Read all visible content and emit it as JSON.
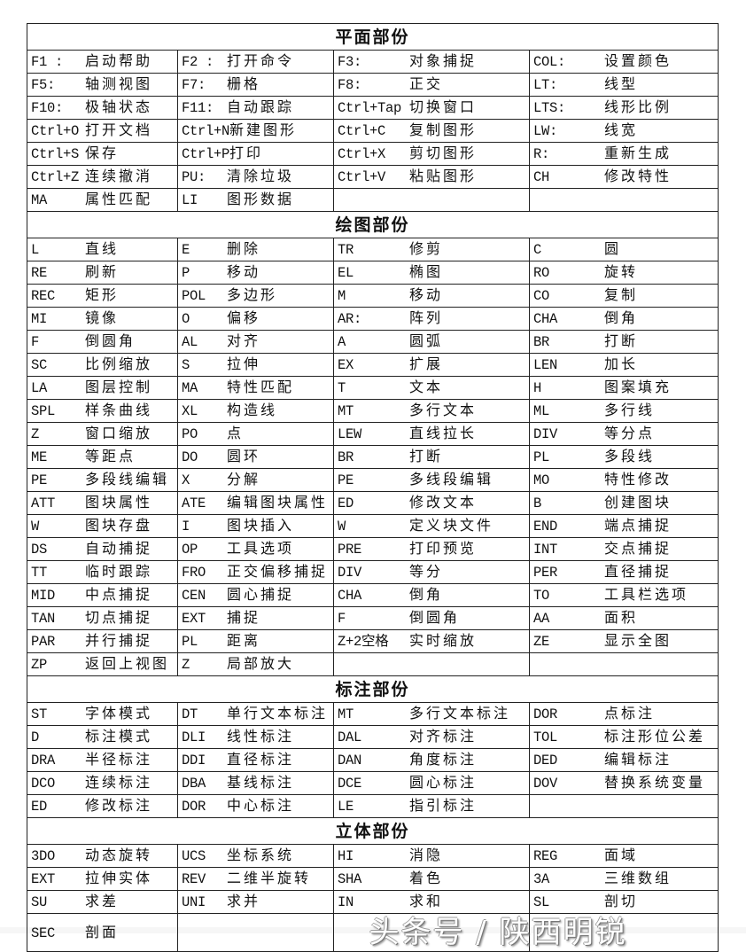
{
  "sections": [
    {
      "title": "平面部份",
      "rows": [
        [
          [
            "F1 :",
            "启动帮助"
          ],
          [
            "F2 :",
            "打开命令"
          ],
          [
            "F3:",
            "对象捕捉"
          ],
          [
            "COL:",
            "设置颜色"
          ]
        ],
        [
          [
            "F5:",
            "轴测视图"
          ],
          [
            "F7:",
            "栅格"
          ],
          [
            "F8:",
            "正交"
          ],
          [
            "LT:",
            "线型"
          ]
        ],
        [
          [
            "F10:",
            "极轴状态"
          ],
          [
            "F11:",
            "自动跟踪"
          ],
          [
            "Ctrl+Tap",
            "切换窗口"
          ],
          [
            "LTS:",
            "线形比例"
          ]
        ],
        [
          [
            "Ctrl+O",
            "打开文档"
          ],
          [
            "Ctrl+N",
            "新建图形"
          ],
          [
            "Ctrl+C",
            "复制图形"
          ],
          [
            "LW:",
            "线宽"
          ]
        ],
        [
          [
            "Ctrl+S",
            "保存"
          ],
          [
            "Ctrl+P",
            "打印"
          ],
          [
            "Ctrl+X",
            "剪切图形"
          ],
          [
            "R:",
            "重新生成"
          ]
        ],
        [
          [
            "Ctrl+Z",
            "连续撤消"
          ],
          [
            "PU:",
            "清除垃圾"
          ],
          [
            "Ctrl+V",
            "粘贴图形"
          ],
          [
            "CH",
            "修改特性"
          ]
        ],
        [
          [
            "MA",
            "属性匹配"
          ],
          [
            "LI",
            "图形数据"
          ],
          [
            "",
            ""
          ],
          [
            "",
            ""
          ]
        ]
      ]
    },
    {
      "title": "绘图部份",
      "rows": [
        [
          [
            "L",
            "直线"
          ],
          [
            "E",
            "删除"
          ],
          [
            "TR",
            "修剪"
          ],
          [
            "C",
            "圆"
          ]
        ],
        [
          [
            "RE",
            "刷新"
          ],
          [
            "P",
            "移动"
          ],
          [
            "EL",
            "椭图"
          ],
          [
            "RO",
            "旋转"
          ]
        ],
        [
          [
            "REC",
            "矩形"
          ],
          [
            "POL",
            "多边形"
          ],
          [
            "M",
            "移动"
          ],
          [
            "CO",
            "复制"
          ]
        ],
        [
          [
            "MI",
            "镜像"
          ],
          [
            "O",
            "偏移"
          ],
          [
            "AR:",
            "阵列"
          ],
          [
            "CHA",
            "倒角"
          ]
        ],
        [
          [
            "F",
            "倒圆角"
          ],
          [
            "AL",
            "对齐"
          ],
          [
            "A",
            "圆弧"
          ],
          [
            "BR",
            "打断"
          ]
        ],
        [
          [
            "SC",
            "比例缩放"
          ],
          [
            "S",
            "拉伸"
          ],
          [
            "EX",
            "扩展"
          ],
          [
            "LEN",
            "加长"
          ]
        ],
        [
          [
            "LA",
            "图层控制"
          ],
          [
            "MA",
            "特性匹配"
          ],
          [
            "T",
            "文本"
          ],
          [
            "H",
            "图案填充"
          ]
        ],
        [
          [
            "SPL",
            "样条曲线"
          ],
          [
            "XL",
            "构造线"
          ],
          [
            "MT",
            "多行文本"
          ],
          [
            "ML",
            "多行线"
          ]
        ],
        [
          [
            "Z",
            "窗口缩放"
          ],
          [
            "PO",
            "点"
          ],
          [
            "LEW",
            "直线拉长"
          ],
          [
            "DIV",
            "等分点"
          ]
        ],
        [
          [
            "ME",
            "等距点"
          ],
          [
            "DO",
            "圆环"
          ],
          [
            "BR",
            "打断"
          ],
          [
            "PL",
            "多段线"
          ]
        ],
        [
          [
            "PE",
            "多段线编辑"
          ],
          [
            "X",
            "分解"
          ],
          [
            "PE",
            "多线段编辑"
          ],
          [
            "MO",
            "特性修改"
          ]
        ],
        [
          [
            "ATT",
            "图块属性"
          ],
          [
            "ATE",
            "编辑图块属性"
          ],
          [
            "ED",
            "修改文本"
          ],
          [
            "B",
            "创建图块"
          ]
        ],
        [
          [
            "W",
            "图块存盘"
          ],
          [
            "I",
            "图块插入"
          ],
          [
            "W",
            "定义块文件"
          ],
          [
            "END",
            "端点捕捉"
          ]
        ],
        [
          [
            "DS",
            "自动捕捉"
          ],
          [
            "OP",
            "工具选项"
          ],
          [
            "PRE",
            "打印预览"
          ],
          [
            "INT",
            "交点捕捉"
          ]
        ],
        [
          [
            "TT",
            "临时跟踪"
          ],
          [
            "FRO",
            "正交偏移捕捉"
          ],
          [
            "DIV",
            "等分"
          ],
          [
            "PER",
            "直径捕捉"
          ]
        ],
        [
          [
            "MID",
            "中点捕捉"
          ],
          [
            "CEN",
            "圆心捕捉"
          ],
          [
            "CHA",
            "倒角"
          ],
          [
            "TO",
            "工具栏选项"
          ]
        ],
        [
          [
            "TAN",
            "切点捕捉"
          ],
          [
            "EXT",
            "捕捉"
          ],
          [
            "F",
            "倒圆角"
          ],
          [
            "AA",
            "面积"
          ]
        ],
        [
          [
            "PAR",
            "并行捕捉"
          ],
          [
            "PL",
            "距离"
          ],
          [
            "Z+2空格",
            "实时缩放"
          ],
          [
            "ZE",
            "显示全图"
          ]
        ],
        [
          [
            "ZP",
            "返回上视图"
          ],
          [
            "Z",
            "局部放大"
          ],
          [
            "",
            ""
          ],
          [
            "",
            ""
          ]
        ]
      ]
    },
    {
      "title": "标注部份",
      "rows": [
        [
          [
            "ST",
            "字体模式"
          ],
          [
            "DT",
            "单行文本标注"
          ],
          [
            "MT",
            "多行文本标注"
          ],
          [
            "DOR",
            "点标注"
          ]
        ],
        [
          [
            "D",
            "标注模式"
          ],
          [
            "DLI",
            "线性标注"
          ],
          [
            "DAL",
            "对齐标注"
          ],
          [
            "TOL",
            "标注形位公差"
          ]
        ],
        [
          [
            "DRA",
            "半径标注"
          ],
          [
            "DDI",
            "直径标注"
          ],
          [
            "DAN",
            "角度标注"
          ],
          [
            "DED",
            "编辑标注"
          ]
        ],
        [
          [
            "DCO",
            "连续标注"
          ],
          [
            "DBA",
            "基线标注"
          ],
          [
            "DCE",
            "圆心标注"
          ],
          [
            "DOV",
            "替换系统变量"
          ]
        ],
        [
          [
            "ED",
            "修改标注"
          ],
          [
            "DOR",
            "中心标注"
          ],
          [
            "LE",
            "指引标注"
          ],
          [
            "",
            ""
          ]
        ]
      ]
    },
    {
      "title": "立体部份",
      "rows": [
        [
          [
            "3DO",
            "动态旋转"
          ],
          [
            "UCS",
            "坐标系统"
          ],
          [
            "HI",
            "消隐"
          ],
          [
            "REG",
            "面域"
          ]
        ],
        [
          [
            "EXT",
            "拉伸实体"
          ],
          [
            "REV",
            "二维半旋转"
          ],
          [
            "SHA",
            "着色"
          ],
          [
            "3A",
            "三维数组"
          ]
        ],
        [
          [
            "SU",
            "求差"
          ],
          [
            "UNI",
            "求并"
          ],
          [
            "IN",
            "求和"
          ],
          [
            "SL",
            "剖切"
          ]
        ],
        [
          [
            "SEC",
            "剖面"
          ],
          [
            "",
            ""
          ],
          [
            "",
            ""
          ],
          [
            "",
            ""
          ]
        ]
      ]
    }
  ],
  "watermark": "头条号 / 陕西明锐"
}
